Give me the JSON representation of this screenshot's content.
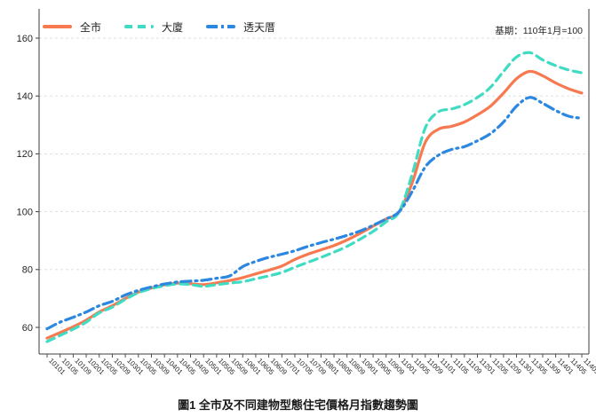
{
  "title": "圖1 全市及不同建物型態住宅價格月指數趨勢圖",
  "annotation": "基期：110年1月=100",
  "legend": {
    "items": [
      {
        "label": "全市"
      },
      {
        "label": "大廈"
      },
      {
        "label": "透天厝"
      }
    ]
  },
  "colors": {
    "series_city": "#f67950",
    "series_building": "#3fdcc3",
    "series_townhouse": "#2b87e0",
    "grid": "#dcdcdc",
    "axis": "#3c3c3c",
    "tick_text": "#262626"
  },
  "chart_data": {
    "type": "line",
    "title": "圖1 全市及不同建物型態住宅價格月指數趨勢圖",
    "annotation": "基期：110年1月=100",
    "xlabel": "",
    "ylabel": "",
    "yticks": [
      60,
      80,
      100,
      120,
      140,
      160
    ],
    "ylim": [
      51,
      170
    ],
    "grid": "horizontal-dashed",
    "legend_position": "top-left",
    "categories": [
      "10101",
      "10105",
      "10109",
      "10201",
      "10205",
      "10209",
      "10301",
      "10305",
      "10309",
      "10401",
      "10405",
      "10409",
      "10501",
      "10505",
      "10509",
      "10601",
      "10605",
      "10609",
      "10701",
      "10705",
      "10709",
      "10801",
      "10805",
      "10809",
      "10901",
      "10905",
      "10909",
      "11001",
      "11005",
      "11009",
      "11101",
      "11105",
      "11109",
      "11201",
      "11205",
      "11209",
      "11301",
      "11305",
      "11309",
      "11401",
      "11405",
      "11409"
    ],
    "series": [
      {
        "name": "全市",
        "color": "#f67950",
        "dash": "solid",
        "values": [
          56.3,
          58.2,
          60.2,
          62.5,
          65.3,
          67.5,
          70.0,
          72.2,
          73.6,
          74.7,
          75.3,
          75.1,
          74.8,
          75.4,
          76.2,
          77.2,
          78.5,
          79.8,
          81.2,
          83.5,
          85.3,
          86.8,
          88.3,
          90.2,
          92.5,
          95.0,
          97.5,
          100.0,
          110.0,
          124.0,
          128.5,
          129.5,
          131.0,
          133.5,
          136.5,
          141.0,
          146.0,
          148.5,
          147.0,
          144.5,
          142.5,
          141.0
        ]
      },
      {
        "name": "大廈",
        "color": "#3fdcc3",
        "dash": "dashed",
        "values": [
          55.1,
          57.2,
          59.4,
          61.8,
          65.0,
          67.0,
          69.7,
          72.0,
          73.4,
          74.4,
          75.0,
          74.8,
          74.2,
          74.8,
          75.3,
          75.8,
          76.8,
          77.8,
          79.0,
          80.8,
          82.5,
          84.2,
          86.0,
          88.0,
          90.5,
          93.2,
          96.5,
          100.0,
          113.0,
          129.0,
          134.5,
          135.5,
          137.0,
          139.5,
          143.0,
          148.5,
          153.5,
          155.0,
          152.5,
          150.5,
          149.0,
          148.0
        ]
      },
      {
        "name": "透天厝",
        "color": "#2b87e0",
        "dash": "dashdot",
        "values": [
          59.5,
          61.8,
          63.5,
          65.3,
          67.5,
          69.0,
          71.2,
          72.8,
          74.0,
          75.0,
          75.7,
          76.0,
          76.3,
          77.0,
          77.8,
          81.0,
          82.8,
          84.2,
          85.3,
          86.5,
          88.0,
          89.3,
          90.5,
          91.8,
          93.3,
          95.3,
          97.5,
          100.0,
          107.0,
          115.5,
          119.5,
          121.5,
          122.5,
          124.5,
          127.0,
          131.0,
          136.5,
          139.5,
          137.5,
          135.0,
          133.0,
          132.3
        ]
      }
    ]
  }
}
